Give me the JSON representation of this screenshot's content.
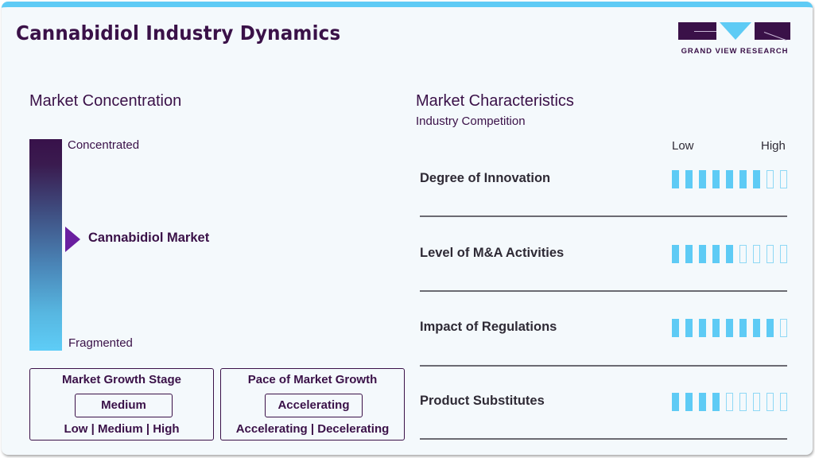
{
  "header": {
    "title": "Cannabidiol Industry Dynamics",
    "logo_text": "GRAND VIEW RESEARCH"
  },
  "colors": {
    "accent_blue": "#5ecbf5",
    "brand_purple": "#3a1148",
    "marker_purple": "#6a1fa0"
  },
  "concentration": {
    "heading": "Market Concentration",
    "top_label": "Concentrated",
    "bottom_label": "Fragmented",
    "marker_label": "Cannabidiol Market",
    "marker_position_pct": 47
  },
  "growth_stage": {
    "title": "Market Growth Stage",
    "selected": "Medium",
    "options": "Low | Medium | High"
  },
  "growth_pace": {
    "title": "Pace of Market Growth",
    "selected": "Accelerating",
    "options": "Accelerating | Decelerating"
  },
  "characteristics": {
    "heading": "Market Characteristics",
    "subtitle": "Industry Competition",
    "scale_low": "Low",
    "scale_high": "High",
    "max_level": 9,
    "rows": [
      {
        "label": "Degree of Innovation",
        "level": 7
      },
      {
        "label": "Level of M&A Activities",
        "level": 5
      },
      {
        "label": "Impact of Regulations",
        "level": 8
      },
      {
        "label": "Product Substitutes",
        "level": 4
      }
    ]
  }
}
